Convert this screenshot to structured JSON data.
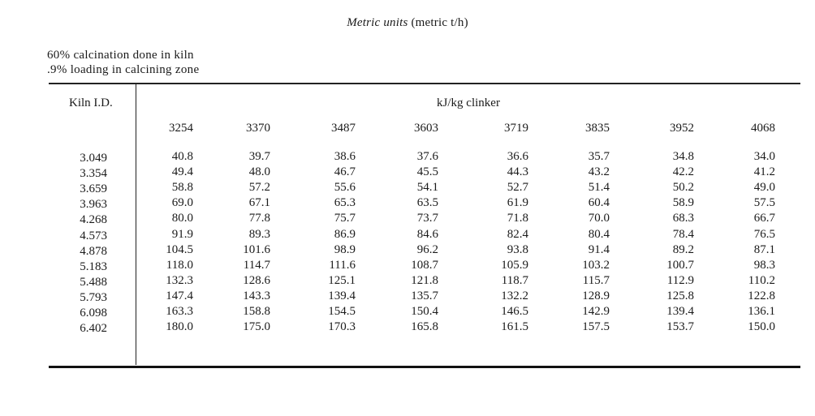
{
  "title": {
    "italic": "Metric units",
    "rest": "(metric t/h)"
  },
  "notes": [
    "60% calcination done in kiln",
    ".9% loading in calcining zone"
  ],
  "table": {
    "stub_header": "Kiln I.D.",
    "column_group_header": "kJ/kg clinker",
    "columns": [
      "3254",
      "3370",
      "3487",
      "3603",
      "3719",
      "3835",
      "3952",
      "4068"
    ],
    "rows": [
      {
        "id": "3.049",
        "values": [
          "40.8",
          "39.7",
          "38.6",
          "37.6",
          "36.6",
          "35.7",
          "34.8",
          "34.0"
        ]
      },
      {
        "id": "3.354",
        "values": [
          "49.4",
          "48.0",
          "46.7",
          "45.5",
          "44.3",
          "43.2",
          "42.2",
          "41.2"
        ]
      },
      {
        "id": "3.659",
        "values": [
          "58.8",
          "57.2",
          "55.6",
          "54.1",
          "52.7",
          "51.4",
          "50.2",
          "49.0"
        ]
      },
      {
        "id": "3.963",
        "values": [
          "69.0",
          "67.1",
          "65.3",
          "63.5",
          "61.9",
          "60.4",
          "58.9",
          "57.5"
        ]
      },
      {
        "id": "4.268",
        "values": [
          "80.0",
          "77.8",
          "75.7",
          "73.7",
          "71.8",
          "70.0",
          "68.3",
          "66.7"
        ]
      },
      {
        "id": "4.573",
        "values": [
          "91.9",
          "89.3",
          "86.9",
          "84.6",
          "82.4",
          "80.4",
          "78.4",
          "76.5"
        ]
      },
      {
        "id": "4.878",
        "values": [
          "104.5",
          "101.6",
          "98.9",
          "96.2",
          "93.8",
          "91.4",
          "89.2",
          "87.1"
        ]
      },
      {
        "id": "5.183",
        "values": [
          "118.0",
          "114.7",
          "111.6",
          "108.7",
          "105.9",
          "103.2",
          "100.7",
          "98.3"
        ]
      },
      {
        "id": "5.488",
        "values": [
          "132.3",
          "128.6",
          "125.1",
          "121.8",
          "118.7",
          "115.7",
          "112.9",
          "110.2"
        ]
      },
      {
        "id": "5.793",
        "values": [
          "147.4",
          "143.3",
          "139.4",
          "135.7",
          "132.2",
          "128.9",
          "125.8",
          "122.8"
        ]
      },
      {
        "id": "6.098",
        "values": [
          "163.3",
          "158.8",
          "154.5",
          "150.4",
          "146.5",
          "142.9",
          "139.4",
          "136.1"
        ]
      },
      {
        "id": "6.402",
        "values": [
          "180.0",
          "175.0",
          "170.3",
          "165.8",
          "161.5",
          "157.5",
          "153.7",
          "150.0"
        ]
      }
    ]
  }
}
